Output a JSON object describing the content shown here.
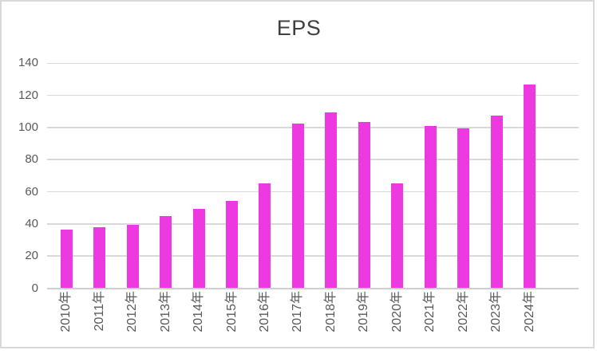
{
  "title": "EPS",
  "chart_data": {
    "type": "bar",
    "title": "EPS",
    "categories": [
      "2010年",
      "2011年",
      "2012年",
      "2013年",
      "2014年",
      "2015年",
      "2016年",
      "2017年",
      "2018年",
      "2019年",
      "2020年",
      "2021年",
      "2022年",
      "2023年",
      "2024年"
    ],
    "values": [
      36.5,
      38,
      39.5,
      45,
      49.5,
      54.5,
      65,
      102.5,
      109.5,
      103.5,
      65,
      101,
      99.5,
      107.5,
      126.5
    ],
    "y_ticks": [
      0,
      20,
      40,
      60,
      80,
      100,
      120,
      140
    ],
    "ylim": [
      0,
      140
    ],
    "xlabel": "",
    "ylabel": "",
    "grid": true,
    "legend": false,
    "x_labels_rotated_degrees": 90
  },
  "colors": {
    "bar": "#ED3AE0",
    "gridline": "#D9D9D9",
    "axis_line": "#CFCFCF",
    "tick_text": "#595959",
    "title_text": "#404040",
    "frame_border": "#D9D9D9"
  }
}
